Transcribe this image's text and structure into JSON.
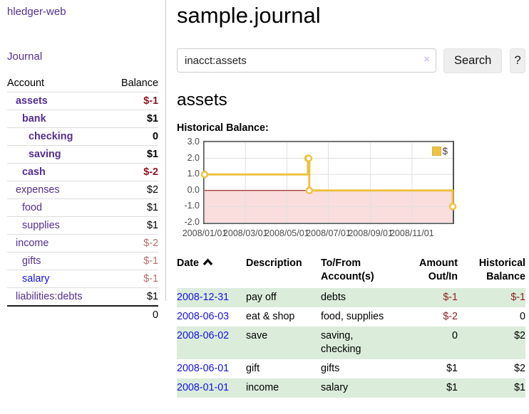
{
  "colors": {
    "link_purple": "#552e91",
    "link_blue": "#1412e0",
    "negative_strong": "#8f1520",
    "negative_soft": "#b66c6c",
    "row_stripe_green": "#dbecdb",
    "chart_series_yellow": "#edc240",
    "chart_negative_region": "#fadddd",
    "chart_zero_line": "#8b0000"
  },
  "brand": "hledger-web",
  "nav": {
    "journal": "Journal"
  },
  "sidebar": {
    "headers": {
      "account": "Account",
      "balance": "Balance"
    },
    "accounts": [
      {
        "name": "assets",
        "indent": 1,
        "balance": "$-1",
        "emph": true
      },
      {
        "name": "bank",
        "indent": 2,
        "balance": "$1",
        "emph": true
      },
      {
        "name": "checking",
        "indent": 3,
        "balance": "0",
        "emph": true
      },
      {
        "name": "saving",
        "indent": 3,
        "balance": "$1",
        "emph": true
      },
      {
        "name": "cash",
        "indent": 2,
        "balance": "$-2",
        "emph": true
      },
      {
        "name": "expenses",
        "indent": 1,
        "balance": "$2"
      },
      {
        "name": "food",
        "indent": 2,
        "balance": "$1"
      },
      {
        "name": "supplies",
        "indent": 2,
        "balance": "$1"
      },
      {
        "name": "income",
        "indent": 1,
        "balance": "$-2"
      },
      {
        "name": "gifts",
        "indent": 2,
        "balance": "$-1"
      },
      {
        "name": "salary",
        "indent": 2,
        "balance": "$-1",
        "unvisited": true
      },
      {
        "name": "liabilities:debts",
        "indent": 1,
        "balance": "$1"
      }
    ],
    "total": "0"
  },
  "header": {
    "title": "sample.journal"
  },
  "search": {
    "value": "inacct:assets",
    "clear_icon": "×",
    "search_button": "Search",
    "help_button": "?"
  },
  "account_page": {
    "title": "assets",
    "chart_heading": "Historical Balance:"
  },
  "chart_data": {
    "type": "line",
    "step": true,
    "title": "Historical Balance:",
    "series": [
      {
        "name": "$",
        "color": "#edc240",
        "points": [
          [
            "2008-01-01",
            1
          ],
          [
            "2008-06-01",
            2
          ],
          [
            "2008-06-02",
            2
          ],
          [
            "2008-06-03",
            0
          ],
          [
            "2008-12-31",
            -1
          ]
        ]
      }
    ],
    "x_range": [
      "2008-01-01",
      "2008-12-31"
    ],
    "y_range": [
      -2,
      3
    ],
    "x_ticks": [
      "2008/01/01",
      "2008/03/01",
      "2008/05/01",
      "2008/07/01",
      "2008/09/01",
      "2008/11/01"
    ],
    "y_ticks": [
      "3.0",
      "2.0",
      "1.0",
      "0.0",
      "-1.0",
      "-2.0"
    ],
    "grid": true,
    "legend_position": "top-right",
    "zero_line_color": "#8b0000",
    "negative_region_color": "#fadddd"
  },
  "register": {
    "headers": {
      "date": "Date",
      "description": "Description",
      "tofrom": "To/From Account(s)",
      "amount": "Amount Out/In",
      "balance": "Historical Balance"
    },
    "rows": [
      {
        "date": "2008-12-31",
        "description": "pay off",
        "accounts": "debts",
        "amount": "$-1",
        "balance": "$-1"
      },
      {
        "date": "2008-06-03",
        "description": "eat & shop",
        "accounts": "food, supplies",
        "amount": "$-2",
        "balance": "0"
      },
      {
        "date": "2008-06-02",
        "description": "save",
        "accounts": "saving,\nchecking",
        "amount": "0",
        "balance": "$2"
      },
      {
        "date": "2008-06-01",
        "description": "gift",
        "accounts": "gifts",
        "amount": "$1",
        "balance": "$2"
      },
      {
        "date": "2008-01-01",
        "description": "income",
        "accounts": "salary",
        "amount": "$1",
        "balance": "$1"
      }
    ]
  }
}
